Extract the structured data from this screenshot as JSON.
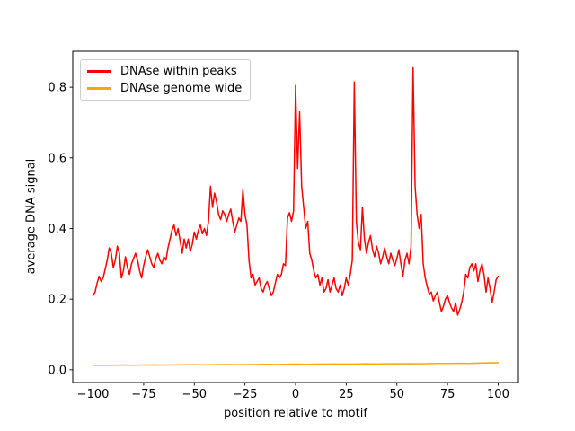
{
  "chart_data": {
    "type": "line",
    "title": "",
    "xlabel": "position relative to motif",
    "ylabel": "average DNA signal",
    "xlim": [
      -110,
      110
    ],
    "ylim": [
      -0.036,
      0.902
    ],
    "xticks": [
      -100,
      -75,
      -50,
      -25,
      0,
      25,
      50,
      75,
      100
    ],
    "xtick_labels": [
      "−100",
      "−75",
      "−50",
      "−25",
      "0",
      "25",
      "50",
      "75",
      "100"
    ],
    "yticks": [
      0.0,
      0.2,
      0.4,
      0.6,
      0.8
    ],
    "ytick_labels": [
      "0.0",
      "0.2",
      "0.4",
      "0.6",
      "0.8"
    ],
    "grid": false,
    "legend_position": "upper left",
    "series": [
      {
        "name": "DNAse within peaks",
        "color": "#ff0000",
        "x_start": -100,
        "x_step": 1,
        "values": [
          0.21,
          0.22,
          0.245,
          0.265,
          0.25,
          0.26,
          0.285,
          0.31,
          0.345,
          0.33,
          0.29,
          0.31,
          0.35,
          0.33,
          0.26,
          0.28,
          0.32,
          0.29,
          0.27,
          0.3,
          0.315,
          0.33,
          0.31,
          0.28,
          0.26,
          0.295,
          0.32,
          0.34,
          0.32,
          0.3,
          0.29,
          0.315,
          0.33,
          0.31,
          0.3,
          0.32,
          0.31,
          0.345,
          0.37,
          0.395,
          0.41,
          0.38,
          0.4,
          0.365,
          0.33,
          0.37,
          0.345,
          0.37,
          0.335,
          0.355,
          0.39,
          0.37,
          0.395,
          0.41,
          0.385,
          0.4,
          0.38,
          0.42,
          0.52,
          0.46,
          0.5,
          0.475,
          0.44,
          0.425,
          0.45,
          0.44,
          0.42,
          0.44,
          0.455,
          0.42,
          0.39,
          0.41,
          0.43,
          0.42,
          0.51,
          0.44,
          0.41,
          0.31,
          0.26,
          0.27,
          0.24,
          0.25,
          0.26,
          0.23,
          0.22,
          0.24,
          0.25,
          0.23,
          0.21,
          0.22,
          0.245,
          0.27,
          0.26,
          0.27,
          0.3,
          0.295,
          0.43,
          0.445,
          0.42,
          0.45,
          0.805,
          0.57,
          0.73,
          0.52,
          0.46,
          0.4,
          0.42,
          0.33,
          0.31,
          0.28,
          0.26,
          0.27,
          0.24,
          0.26,
          0.22,
          0.23,
          0.255,
          0.22,
          0.24,
          0.26,
          0.23,
          0.22,
          0.24,
          0.21,
          0.23,
          0.26,
          0.24,
          0.27,
          0.31,
          0.815,
          0.42,
          0.36,
          0.34,
          0.46,
          0.37,
          0.33,
          0.36,
          0.38,
          0.34,
          0.32,
          0.35,
          0.33,
          0.3,
          0.32,
          0.345,
          0.32,
          0.3,
          0.33,
          0.31,
          0.295,
          0.315,
          0.34,
          0.3,
          0.265,
          0.31,
          0.33,
          0.3,
          0.35,
          0.855,
          0.52,
          0.44,
          0.4,
          0.44,
          0.3,
          0.26,
          0.235,
          0.215,
          0.22,
          0.195,
          0.21,
          0.22,
          0.19,
          0.165,
          0.18,
          0.2,
          0.21,
          0.19,
          0.175,
          0.165,
          0.19,
          0.155,
          0.17,
          0.19,
          0.22,
          0.27,
          0.26,
          0.29,
          0.3,
          0.28,
          0.3,
          0.25,
          0.28,
          0.3,
          0.27,
          0.22,
          0.26,
          0.23,
          0.19,
          0.22,
          0.255,
          0.265
        ]
      },
      {
        "name": "DNAse genome wide",
        "color": "#ffa500",
        "x_start": -100,
        "x_step": 5,
        "values": [
          0.013,
          0.0125,
          0.013,
          0.0135,
          0.013,
          0.0135,
          0.014,
          0.0135,
          0.014,
          0.014,
          0.0145,
          0.014,
          0.0145,
          0.015,
          0.0145,
          0.015,
          0.015,
          0.0155,
          0.015,
          0.0155,
          0.016,
          0.0155,
          0.016,
          0.016,
          0.0165,
          0.016,
          0.0165,
          0.017,
          0.0165,
          0.017,
          0.017,
          0.0175,
          0.017,
          0.0175,
          0.018,
          0.018,
          0.0185,
          0.018,
          0.019,
          0.0195,
          0.02
        ]
      }
    ]
  }
}
